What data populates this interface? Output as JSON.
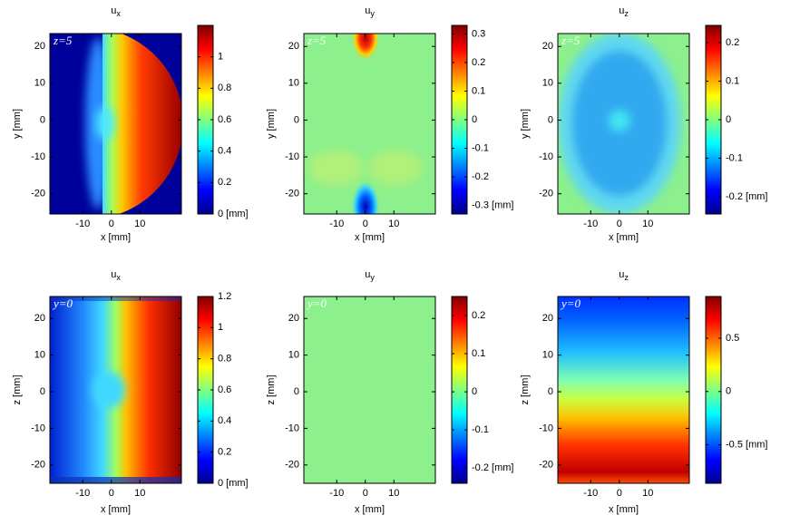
{
  "chart_data": [
    {
      "type": "heatmap",
      "title": "u",
      "title_sub": "x",
      "annotation": "z=5",
      "xlabel": "x [mm]",
      "ylabel": "y [mm]",
      "xlim": [
        -21.5,
        24.5
      ],
      "xticks": [
        -10,
        0,
        10
      ],
      "ylim": [
        -25.5,
        23.5
      ],
      "yticks": [
        -20,
        -10,
        0,
        10,
        20
      ],
      "colormap": "jet",
      "clim": [
        0,
        1.2
      ],
      "cticks": [
        {
          "value": 0,
          "label": "0 [mm]"
        },
        0.2,
        0.4,
        0.6,
        0.8,
        1
      ]
    },
    {
      "type": "heatmap",
      "title": "u",
      "title_sub": "y",
      "annotation": "z=5",
      "xlabel": "x [mm]",
      "ylabel": "y [mm]",
      "xlim": [
        -21.5,
        24.5
      ],
      "xticks": [
        -10,
        0,
        10
      ],
      "ylim": [
        -25.5,
        23.5
      ],
      "yticks": [
        -20,
        -10,
        0,
        10,
        20
      ],
      "colormap": "jet",
      "clim": [
        -0.33,
        0.33
      ],
      "cticks": [
        {
          "value": -0.3,
          "label": "-0.3 [mm]"
        },
        -0.2,
        -0.1,
        0,
        0.1,
        0.2,
        0.3
      ]
    },
    {
      "type": "heatmap",
      "title": "u",
      "title_sub": "z",
      "annotation": "z=5",
      "xlabel": "x [mm]",
      "ylabel": "y [mm]",
      "xlim": [
        -21.5,
        24.5
      ],
      "xticks": [
        -10,
        0,
        10
      ],
      "ylim": [
        -25.5,
        23.5
      ],
      "yticks": [
        -20,
        -10,
        0,
        10,
        20
      ],
      "colormap": "jet",
      "clim": [
        -0.245,
        0.245
      ],
      "cticks": [
        {
          "value": -0.2,
          "label": "-0.2 [mm]"
        },
        -0.1,
        0,
        0.1,
        0.2
      ]
    },
    {
      "type": "heatmap",
      "title": "u",
      "title_sub": "x",
      "annotation": "y=0",
      "xlabel": "x [mm]",
      "ylabel": "z [mm]",
      "xlim": [
        -21.5,
        24.5
      ],
      "xticks": [
        -10,
        0,
        10
      ],
      "ylim": [
        -25,
        26
      ],
      "yticks": [
        -20,
        -10,
        0,
        10,
        20
      ],
      "colormap": "jet",
      "clim": [
        0,
        1.2
      ],
      "cticks": [
        {
          "value": 0,
          "label": "0 [mm]"
        },
        0.2,
        0.4,
        0.6,
        0.8,
        1,
        1.2
      ]
    },
    {
      "type": "heatmap",
      "title": "u",
      "title_sub": "y",
      "annotation": "y=0",
      "xlabel": "x [mm]",
      "ylabel": "z [mm]",
      "xlim": [
        -21.5,
        24.5
      ],
      "xticks": [
        -10,
        0,
        10
      ],
      "ylim": [
        -25,
        26
      ],
      "yticks": [
        -20,
        -10,
        0,
        10,
        20
      ],
      "colormap": "jet",
      "clim": [
        -0.24,
        0.25
      ],
      "cticks": [
        {
          "value": -0.2,
          "label": "-0.2 [mm]"
        },
        -0.1,
        0,
        0.1,
        0.2
      ]
    },
    {
      "type": "heatmap",
      "title": "u",
      "title_sub": "z",
      "annotation": "y=0",
      "xlabel": "x [mm]",
      "ylabel": "z [mm]",
      "xlim": [
        -21.5,
        24.5
      ],
      "xticks": [
        -10,
        0,
        10
      ],
      "ylim": [
        -25,
        26
      ],
      "yticks": [
        -20,
        -10,
        0,
        10,
        20
      ],
      "colormap": "jet",
      "clim": [
        -0.86,
        0.89
      ],
      "cticks": [
        {
          "value": -0.5,
          "label": "-0.5 [mm]"
        },
        0,
        0.5
      ]
    }
  ]
}
